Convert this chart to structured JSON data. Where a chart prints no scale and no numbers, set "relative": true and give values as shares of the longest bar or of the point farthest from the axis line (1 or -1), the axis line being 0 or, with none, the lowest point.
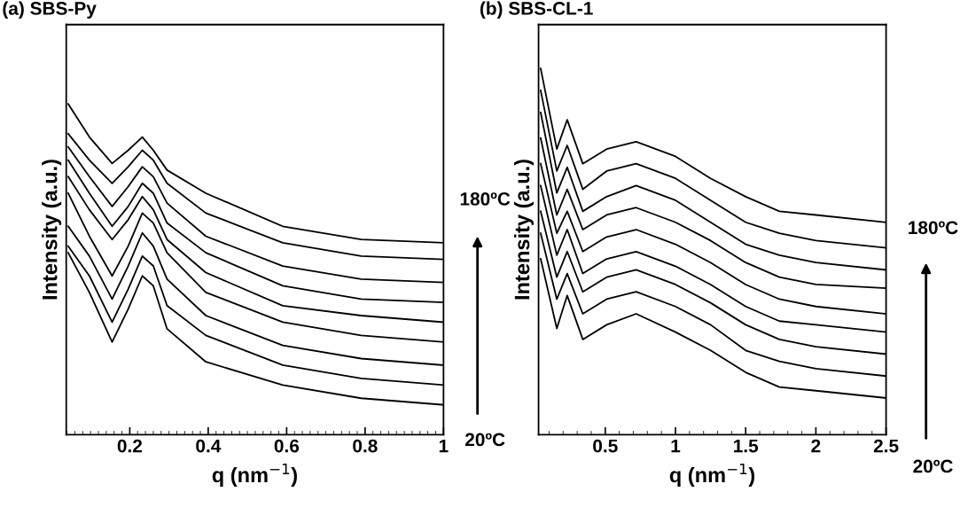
{
  "chart_data": [
    {
      "type": "line",
      "title": "(a) SBS-Py",
      "xlabel": "q (nm$^{−1}$)",
      "ylabel": "Intensity (a.u.)",
      "relative": true,
      "tick_labels": "x",
      "line_style": "solid",
      "marker": "none",
      "x": [
        0.043,
        0.097,
        0.155,
        0.196,
        0.232,
        0.26,
        0.295,
        0.394,
        0.59,
        0.79,
        1.0
      ],
      "xlim": [
        0.038,
        1.0
      ],
      "xticks": [
        0.2,
        0.4,
        0.6,
        0.8,
        1
      ],
      "series": [
        {
          "color": "#000000",
          "values": [
            1.0,
            0.9,
            0.82,
            0.86,
            0.9,
            0.86,
            0.8,
            0.73,
            0.63,
            0.59,
            0.58
          ]
        },
        {
          "color": "#000000",
          "values": [
            0.91,
            0.83,
            0.76,
            0.81,
            0.86,
            0.83,
            0.76,
            0.67,
            0.58,
            0.54,
            0.53
          ]
        },
        {
          "color": "#000000",
          "values": [
            0.87,
            0.78,
            0.69,
            0.75,
            0.81,
            0.78,
            0.7,
            0.6,
            0.51,
            0.47,
            0.46
          ]
        },
        {
          "color": "#000000",
          "values": [
            0.83,
            0.73,
            0.63,
            0.69,
            0.76,
            0.73,
            0.64,
            0.55,
            0.45,
            0.41,
            0.4
          ]
        },
        {
          "color": "#000000",
          "values": [
            0.78,
            0.68,
            0.59,
            0.65,
            0.72,
            0.68,
            0.59,
            0.49,
            0.39,
            0.36,
            0.34
          ]
        },
        {
          "color": "#000000",
          "values": [
            0.73,
            0.6,
            0.48,
            0.57,
            0.67,
            0.64,
            0.55,
            0.43,
            0.34,
            0.3,
            0.28
          ]
        },
        {
          "color": "#000000",
          "values": [
            0.63,
            0.54,
            0.41,
            0.51,
            0.61,
            0.57,
            0.47,
            0.36,
            0.27,
            0.23,
            0.21
          ]
        },
        {
          "color": "#000000",
          "values": [
            0.57,
            0.48,
            0.34,
            0.44,
            0.54,
            0.51,
            0.39,
            0.3,
            0.21,
            0.17,
            0.15
          ]
        },
        {
          "color": "#000000",
          "values": [
            0.55,
            0.43,
            0.28,
            0.38,
            0.48,
            0.45,
            0.32,
            0.22,
            0.15,
            0.11,
            0.09
          ]
        }
      ],
      "annotations": [
        "180ºC",
        "20ºC"
      ]
    },
    {
      "type": "line",
      "title": "(b) SBS-CL-1",
      "xlabel": "q (nm$^{−1}$)",
      "ylabel": "Intensity (a.u.)",
      "relative": true,
      "tick_labels": "x",
      "line_style": "solid",
      "marker": "none",
      "x": [
        0.04,
        0.155,
        0.229,
        0.34,
        0.51,
        0.72,
        1.0,
        1.25,
        1.5,
        1.74,
        2.0,
        2.5
      ],
      "xlim": [
        0.025,
        2.5
      ],
      "xticks": [
        0.5,
        1,
        1.5,
        2,
        2.5
      ],
      "series": [
        {
          "color": "#000000",
          "values": [
            1.0,
            0.78,
            0.86,
            0.74,
            0.78,
            0.8,
            0.76,
            0.7,
            0.65,
            0.61,
            0.6,
            0.58
          ]
        },
        {
          "color": "#000000",
          "values": [
            0.94,
            0.72,
            0.79,
            0.67,
            0.72,
            0.74,
            0.7,
            0.64,
            0.58,
            0.55,
            0.53,
            0.51
          ]
        },
        {
          "color": "#000000",
          "values": [
            0.88,
            0.66,
            0.73,
            0.61,
            0.65,
            0.68,
            0.64,
            0.58,
            0.52,
            0.49,
            0.47,
            0.45
          ]
        },
        {
          "color": "#000000",
          "values": [
            0.81,
            0.6,
            0.67,
            0.56,
            0.6,
            0.62,
            0.58,
            0.53,
            0.47,
            0.43,
            0.41,
            0.4
          ]
        },
        {
          "color": "#000000",
          "values": [
            0.74,
            0.55,
            0.61,
            0.5,
            0.54,
            0.56,
            0.52,
            0.47,
            0.41,
            0.37,
            0.35,
            0.33
          ]
        },
        {
          "color": "#000000",
          "values": [
            0.68,
            0.49,
            0.56,
            0.44,
            0.48,
            0.5,
            0.46,
            0.41,
            0.35,
            0.31,
            0.3,
            0.28
          ]
        },
        {
          "color": "#000000",
          "values": [
            0.61,
            0.43,
            0.5,
            0.39,
            0.43,
            0.45,
            0.41,
            0.36,
            0.3,
            0.26,
            0.24,
            0.22
          ]
        },
        {
          "color": "#000000",
          "values": [
            0.55,
            0.37,
            0.44,
            0.33,
            0.37,
            0.39,
            0.35,
            0.3,
            0.23,
            0.2,
            0.18,
            0.16
          ]
        },
        {
          "color": "#000000",
          "values": [
            0.48,
            0.29,
            0.38,
            0.26,
            0.3,
            0.33,
            0.28,
            0.23,
            0.17,
            0.13,
            0.12,
            0.1
          ]
        }
      ],
      "annotations": [
        "180ºC",
        "20ºC"
      ]
    }
  ]
}
